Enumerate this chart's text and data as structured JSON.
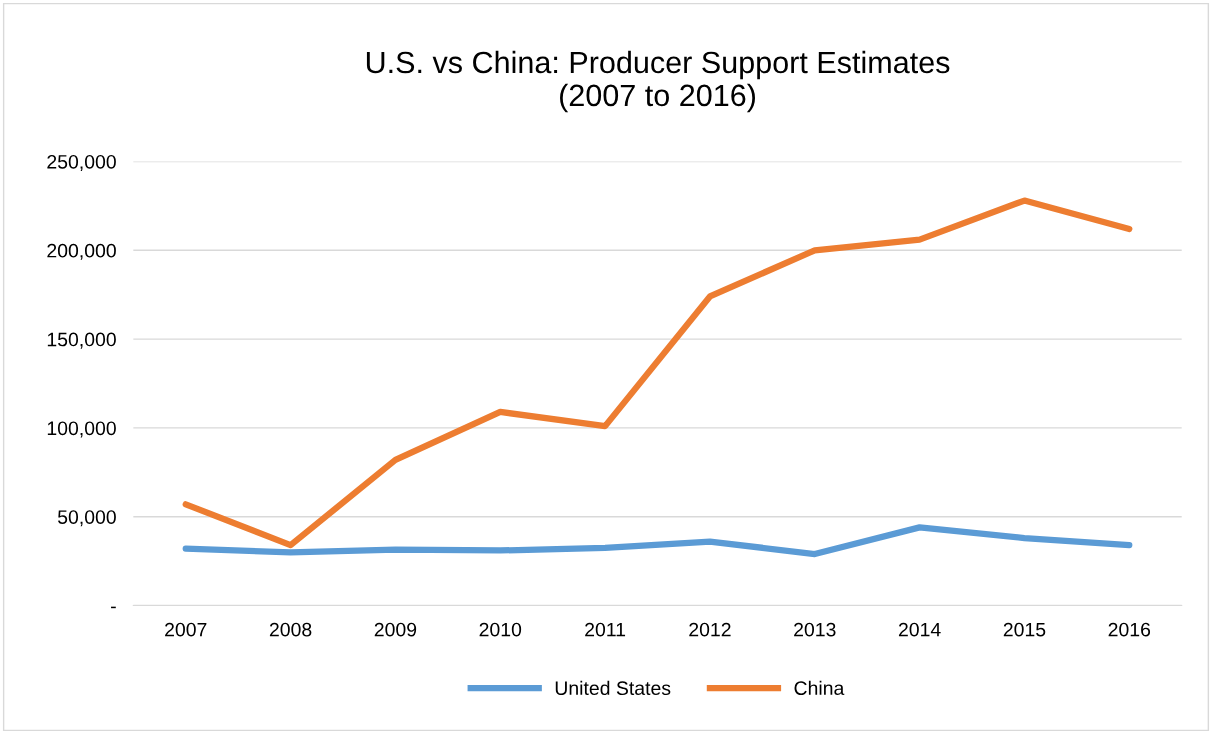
{
  "chart_data": {
    "type": "line",
    "title": "U.S. vs China: Producer Support Estimates\n(2007 to 2016)",
    "categories": [
      "2007",
      "2008",
      "2009",
      "2010",
      "2011",
      "2012",
      "2013",
      "2014",
      "2015",
      "2016"
    ],
    "series": [
      {
        "name": "United States",
        "color": "#5b9bd5",
        "values": [
          32000,
          30000,
          31500,
          31000,
          32500,
          36000,
          29000,
          44000,
          38000,
          34000
        ]
      },
      {
        "name": "China",
        "color": "#ed7d31",
        "values": [
          57000,
          34000,
          82000,
          109000,
          101000,
          174000,
          200000,
          206000,
          228000,
          212000
        ]
      }
    ],
    "ylim": [
      0,
      250000
    ],
    "yticks": [
      {
        "value": 0,
        "label": "-"
      },
      {
        "value": 50000,
        "label": "50,000"
      },
      {
        "value": 100000,
        "label": "100,000"
      },
      {
        "value": 150000,
        "label": "150,000"
      },
      {
        "value": 200000,
        "label": "200,000"
      },
      {
        "value": 250000,
        "label": "250,000"
      }
    ],
    "grid": "y",
    "legend": "bottom",
    "marker": "none",
    "line_style": "solid"
  }
}
